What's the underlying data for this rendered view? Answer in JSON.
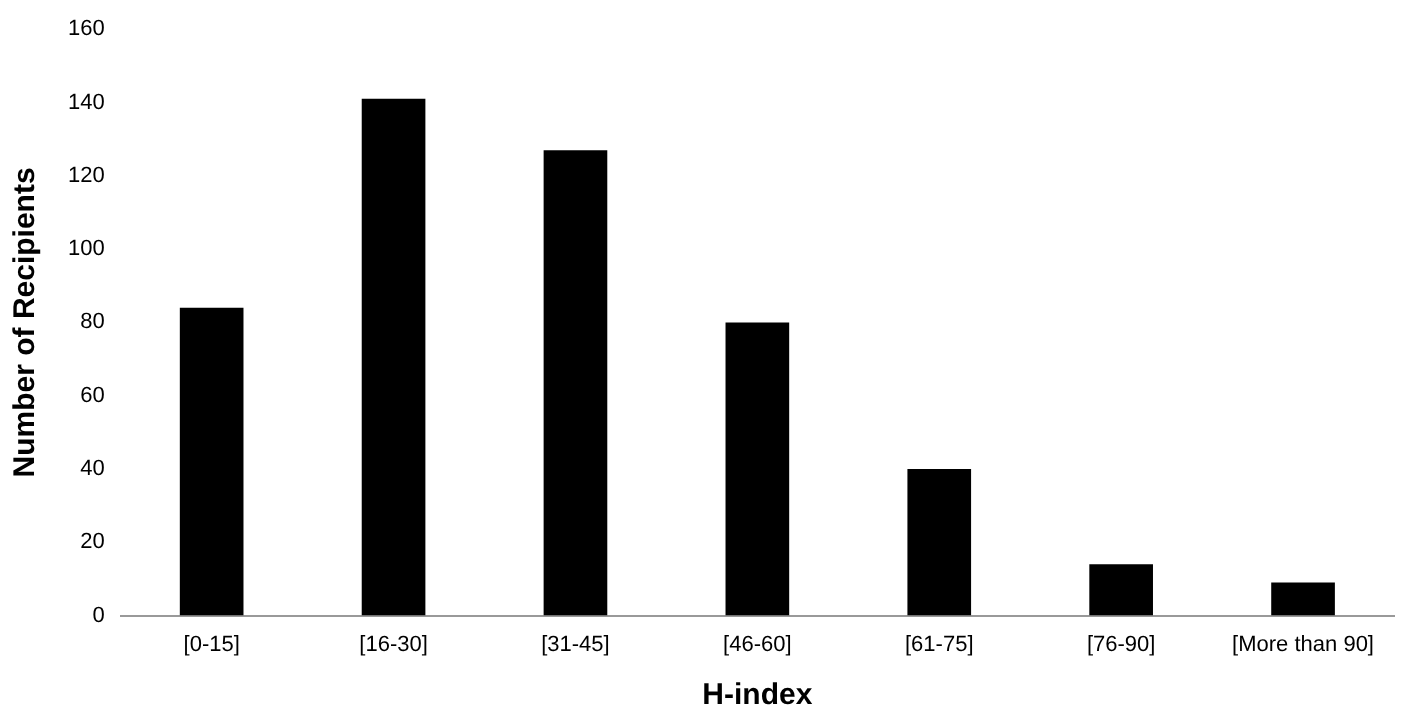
{
  "chart_data": {
    "type": "bar",
    "xlabel": "H-index",
    "ylabel": "Number of Recipients",
    "categories": [
      "[0-15]",
      "[16-30]",
      "[31-45]",
      "[46-60]",
      "[61-75]",
      "[76-90]",
      "[More than 90]"
    ],
    "values": [
      84,
      141,
      127,
      80,
      40,
      14,
      9
    ],
    "color": "#000000",
    "ylim": [
      0,
      160
    ],
    "yticks": [
      0,
      20,
      40,
      60,
      80,
      100,
      120,
      140,
      160
    ],
    "grid": false,
    "legend": false
  }
}
